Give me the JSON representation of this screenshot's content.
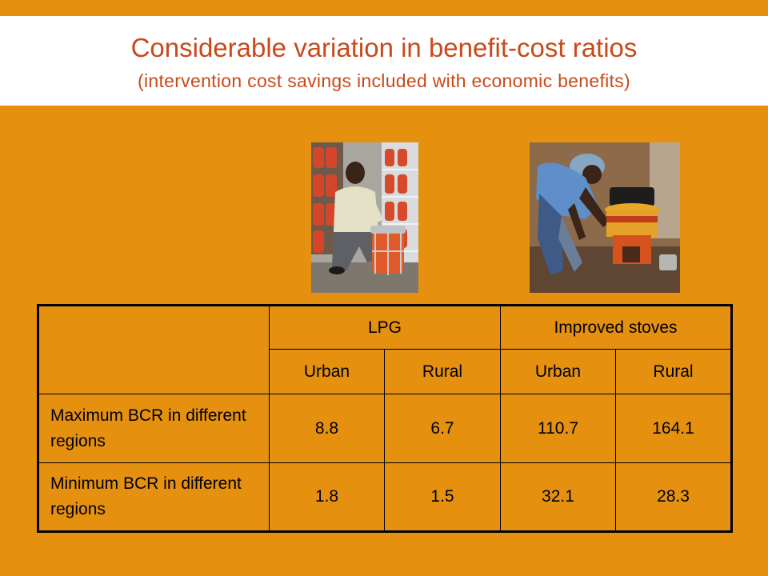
{
  "slide": {
    "title": "Considerable variation in benefit-cost ratios",
    "subtitle": "(intervention cost savings included with economic benefits)"
  },
  "images": {
    "lpg_photo": "photo-man-with-lpg-cylinders",
    "stove_photo": "photo-woman-with-improved-stove"
  },
  "table": {
    "group_headers": [
      "LPG",
      "Improved stoves"
    ],
    "sub_headers": [
      "Urban",
      "Rural",
      "Urban",
      "Rural"
    ],
    "rows": [
      {
        "label": "Maximum BCR in different regions",
        "values": [
          "8.8",
          "6.7",
          "110.7",
          "164.1"
        ]
      },
      {
        "label": "Minimum BCR in different regions",
        "values": [
          "1.8",
          "1.5",
          "32.1",
          "28.3"
        ]
      }
    ]
  },
  "colors": {
    "background": "#E5900F",
    "title": "#C84A1A",
    "band": "#FFFFFF"
  }
}
